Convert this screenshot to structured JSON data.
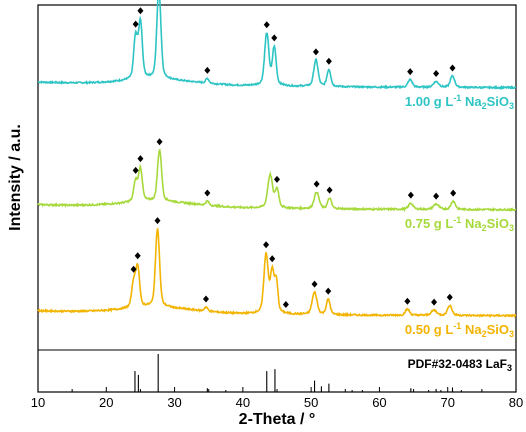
{
  "chart_data": {
    "type": "line",
    "title": "",
    "xlabel": "2-Theta / °",
    "ylabel": "Intensity / a.u.",
    "xlim": [
      10,
      80
    ],
    "xticks": [
      10,
      20,
      30,
      40,
      50,
      60,
      70,
      80
    ],
    "grid": false,
    "series": [
      {
        "name": "1.00 g L⁻¹ Na₂SiO₃",
        "label_parts": [
          "1.00 g L",
          "-1",
          " Na",
          "2",
          "SiO",
          "3"
        ],
        "color": "#2ec4c4",
        "offset": 2.0,
        "baseline": 0.12,
        "peaks": [
          [
            24.3,
            0.45,
            0.35
          ],
          [
            25.0,
            0.6,
            0.35
          ],
          [
            27.7,
            0.95,
            0.38
          ],
          [
            34.8,
            0.05,
            0.3
          ],
          [
            43.5,
            0.55,
            0.4
          ],
          [
            44.6,
            0.4,
            0.35
          ],
          [
            50.7,
            0.28,
            0.4
          ],
          [
            52.6,
            0.18,
            0.35
          ],
          [
            64.5,
            0.08,
            0.4
          ],
          [
            68.3,
            0.06,
            0.5
          ],
          [
            70.7,
            0.12,
            0.4
          ]
        ],
        "markers": [
          24.3,
          25.0,
          27.7,
          34.8,
          43.5,
          44.6,
          50.7,
          52.6,
          64.5,
          68.3,
          70.7
        ]
      },
      {
        "name": "0.75 g L⁻¹ Na₂SiO₃",
        "label_parts": [
          "0.75 g L",
          "-1",
          " Na",
          "2",
          "SiO",
          "3"
        ],
        "color": "#a6d93b",
        "offset": 1.0,
        "baseline": 0.1,
        "peaks": [
          [
            24.3,
            0.2,
            0.35
          ],
          [
            25.0,
            0.32,
            0.35
          ],
          [
            27.8,
            0.5,
            0.38
          ],
          [
            34.8,
            0.04,
            0.3
          ],
          [
            44.0,
            0.32,
            0.45
          ],
          [
            45.0,
            0.18,
            0.35
          ],
          [
            50.8,
            0.16,
            0.45
          ],
          [
            52.7,
            0.1,
            0.35
          ],
          [
            64.6,
            0.06,
            0.4
          ],
          [
            68.3,
            0.05,
            0.5
          ],
          [
            70.8,
            0.08,
            0.4
          ]
        ],
        "markers": [
          24.3,
          25.0,
          27.8,
          34.8,
          45.0,
          50.8,
          52.7,
          64.6,
          68.3,
          70.8
        ]
      },
      {
        "name": "0.50 g L⁻¹ Na₂SiO₃",
        "label_parts": [
          "0.50 g L",
          "-1",
          " Na",
          "2",
          "SiO",
          "3"
        ],
        "color": "#f2b400",
        "offset": 0.0,
        "baseline": 0.1,
        "peaks": [
          [
            24.0,
            0.25,
            0.35
          ],
          [
            24.6,
            0.4,
            0.35
          ],
          [
            27.5,
            0.78,
            0.38
          ],
          [
            34.6,
            0.04,
            0.3
          ],
          [
            43.4,
            0.58,
            0.4
          ],
          [
            44.3,
            0.4,
            0.35
          ],
          [
            44.9,
            0.3,
            0.3
          ],
          [
            50.5,
            0.22,
            0.45
          ],
          [
            52.5,
            0.15,
            0.35
          ],
          [
            64.1,
            0.06,
            0.4
          ],
          [
            68.0,
            0.05,
            0.5
          ],
          [
            70.3,
            0.1,
            0.4
          ]
        ],
        "markers": [
          24.0,
          24.6,
          27.5,
          34.6,
          43.4,
          44.3,
          46.3,
          50.5,
          52.5,
          64.1,
          68.0,
          70.3
        ]
      }
    ],
    "reference": {
      "label_parts": [
        "PDF#32-0483 LaF",
        "3"
      ],
      "lines": [
        [
          24.2,
          0.55
        ],
        [
          24.7,
          0.45
        ],
        [
          27.6,
          1.0
        ],
        [
          34.8,
          0.1
        ],
        [
          37.5,
          0.05
        ],
        [
          43.5,
          0.55
        ],
        [
          44.7,
          0.6
        ],
        [
          50.5,
          0.3
        ],
        [
          51.5,
          0.15
        ],
        [
          52.6,
          0.22
        ],
        [
          56.0,
          0.05
        ],
        [
          57.5,
          0.05
        ],
        [
          64.6,
          0.1
        ],
        [
          67.2,
          0.05
        ],
        [
          68.3,
          0.08
        ],
        [
          69.0,
          0.05
        ],
        [
          70.7,
          0.12
        ],
        [
          72.0,
          0.05
        ]
      ]
    }
  }
}
